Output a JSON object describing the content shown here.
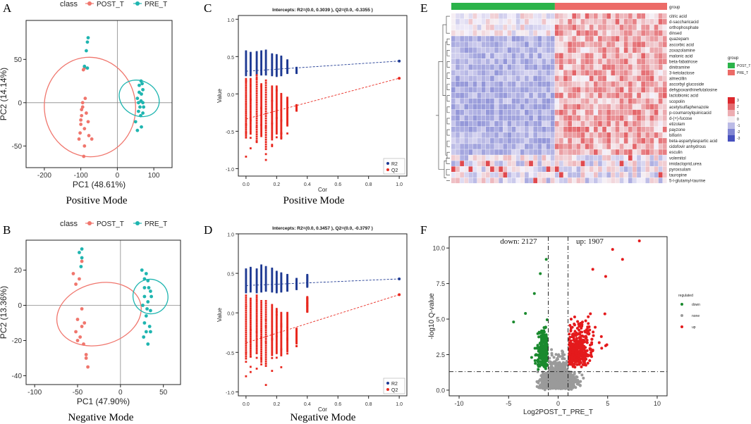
{
  "panels": {
    "A": {
      "letter": "A",
      "mode_label": "Positive Mode"
    },
    "B": {
      "letter": "B",
      "mode_label": "Negative Mode"
    },
    "C": {
      "letter": "C",
      "mode_label": "Positive Mode"
    },
    "D": {
      "letter": "D",
      "mode_label": "Negative Mode"
    },
    "E": {
      "letter": "E"
    },
    "F": {
      "letter": "F"
    }
  },
  "colors": {
    "post": "#f0766d",
    "pre": "#1fb5b0",
    "r2": "#1f3a93",
    "q2": "#e8281f",
    "down": "#1a8a2e",
    "none": "#9a9a9a",
    "up": "#e41a1c"
  },
  "chart_data": [
    {
      "id": "A",
      "type": "scatter",
      "legend_title": "class",
      "legend": [
        "POST_T",
        "PRE_T"
      ],
      "xlabel": "PC1 (48.61%)",
      "ylabel": "PC2 (14.14%)",
      "xlim": [
        -250,
        150
      ],
      "ylim": [
        -75,
        95
      ],
      "xticks": [
        -200,
        -100,
        0,
        100
      ],
      "yticks": [
        -50,
        0,
        50
      ],
      "ellipses": [
        {
          "series": "POST_T",
          "center": [
            -75,
            -5
          ],
          "rx": 250,
          "ry": 115,
          "angle": -5
        },
        {
          "series": "PRE_T",
          "center": [
            60,
            5
          ],
          "rx": 95,
          "ry": 48,
          "angle": -60
        }
      ],
      "series": [
        {
          "name": "POST_T",
          "points": [
            [
              -95,
              -5
            ],
            [
              -98,
              -15
            ],
            [
              -100,
              -25
            ],
            [
              -102,
              -35
            ],
            [
              -105,
              -42
            ],
            [
              -90,
              -50
            ],
            [
              -92,
              -62
            ],
            [
              -85,
              -12
            ],
            [
              -80,
              -22
            ],
            [
              -95,
              0
            ],
            [
              -100,
              -20
            ],
            [
              -90,
              -30
            ],
            [
              -78,
              -38
            ],
            [
              -70,
              -42
            ],
            [
              -88,
              5
            ],
            [
              -93,
              38
            ],
            [
              -90,
              40
            ],
            [
              -98,
              -8
            ]
          ]
        },
        {
          "name": "PRE_T",
          "points": [
            [
              -80,
              75
            ],
            [
              -82,
              70
            ],
            [
              -85,
              60
            ],
            [
              -90,
              42
            ],
            [
              -82,
              40
            ],
            [
              60,
              20
            ],
            [
              65,
              25
            ],
            [
              70,
              15
            ],
            [
              55,
              5
            ],
            [
              58,
              0
            ],
            [
              62,
              -5
            ],
            [
              66,
              10
            ],
            [
              70,
              -12
            ],
            [
              50,
              -22
            ],
            [
              55,
              -32
            ],
            [
              68,
              22
            ],
            [
              60,
              12
            ],
            [
              65,
              2
            ],
            [
              72,
              -5
            ],
            [
              58,
              -10
            ],
            [
              64,
              -15
            ],
            [
              70,
              0
            ],
            [
              66,
              -28
            ]
          ]
        }
      ]
    },
    {
      "id": "B",
      "type": "scatter",
      "legend_title": "class",
      "legend": [
        "POST_T",
        "PRE_T"
      ],
      "xlabel": "PC1 (47.90%)",
      "ylabel": "PC2 (13.36%)",
      "xlim": [
        -110,
        70
      ],
      "ylim": [
        -45,
        37
      ],
      "xticks": [
        -100,
        -50,
        0,
        50
      ],
      "yticks": [
        -40,
        -20,
        0,
        20
      ],
      "ellipses": [
        {
          "series": "POST_T",
          "center": [
            -25,
            -5
          ],
          "rx": 100,
          "ry": 35,
          "angle": -15
        },
        {
          "series": "PRE_T",
          "center": [
            35,
            5
          ],
          "rx": 40,
          "ry": 20,
          "angle": -55
        }
      ],
      "series": [
        {
          "name": "POST_T",
          "points": [
            [
              -48,
              15
            ],
            [
              -52,
              12
            ],
            [
              -50,
              -8
            ],
            [
              -45,
              -12
            ],
            [
              -47,
              -18
            ],
            [
              -43,
              -22
            ],
            [
              -40,
              -28
            ],
            [
              -38,
              -35
            ],
            [
              -55,
              18
            ],
            [
              -45,
              -2
            ],
            [
              -42,
              -10
            ],
            [
              -50,
              -20
            ],
            [
              -45,
              25
            ],
            [
              -52,
              -15
            ],
            [
              -40,
              -30
            ]
          ]
        },
        {
          "name": "PRE_T",
          "points": [
            [
              -45,
              32
            ],
            [
              -48,
              30
            ],
            [
              -45,
              27
            ],
            [
              -46,
              22
            ],
            [
              25,
              20
            ],
            [
              30,
              18
            ],
            [
              32,
              14
            ],
            [
              28,
              10
            ],
            [
              35,
              8
            ],
            [
              28,
              5
            ],
            [
              32,
              2
            ],
            [
              26,
              0
            ],
            [
              35,
              -3
            ],
            [
              30,
              -6
            ],
            [
              28,
              -10
            ],
            [
              34,
              -12
            ],
            [
              30,
              -15
            ],
            [
              27,
              -18
            ],
            [
              32,
              -22
            ],
            [
              35,
              -15
            ],
            [
              28,
              15
            ],
            [
              33,
              10
            ],
            [
              36,
              5
            ],
            [
              31,
              -2
            ]
          ]
        }
      ]
    },
    {
      "id": "C",
      "type": "scatter",
      "title": "Intercepts: R2=(0.0, 0.3039 ), Q2=(0.0, -0.3355 )",
      "xlabel": "Cor",
      "ylabel": "Value",
      "xlim": [
        -0.05,
        1.05
      ],
      "ylim": [
        -1.1,
        1.05
      ],
      "xticks": [
        0.0,
        0.2,
        0.4,
        0.6,
        0.8,
        1.0
      ],
      "yticks": [
        -1.0,
        -0.5,
        0.0,
        0.5,
        1.0
      ],
      "legend": [
        "R2",
        "Q2"
      ],
      "lines": [
        {
          "series": "R2",
          "from": [
            0,
            0.3039
          ],
          "to": [
            1.0,
            0.44
          ]
        },
        {
          "series": "Q2",
          "from": [
            0,
            -0.3355
          ],
          "to": [
            1.0,
            0.21
          ]
        }
      ],
      "x_columns": [
        0.0,
        0.03,
        0.07,
        0.1,
        0.13,
        0.17,
        0.2,
        0.23,
        0.27,
        0.33
      ],
      "r2_ranges": [
        [
          0.25,
          0.57
        ],
        [
          0.25,
          0.55
        ],
        [
          0.25,
          0.56
        ],
        [
          0.26,
          0.57
        ],
        [
          0.26,
          0.58
        ],
        [
          0.25,
          0.53
        ],
        [
          0.24,
          0.52
        ],
        [
          0.25,
          0.5
        ],
        [
          0.28,
          0.45
        ],
        [
          0.28,
          0.35
        ]
      ],
      "q2_ranges": [
        [
          -0.85,
          0.2
        ],
        [
          -0.78,
          0.2
        ],
        [
          -0.93,
          0.25
        ],
        [
          -0.8,
          0.13
        ],
        [
          -1.05,
          0.18
        ],
        [
          -0.85,
          0.1
        ],
        [
          -0.72,
          0.1
        ],
        [
          -0.8,
          0.0
        ],
        [
          -0.55,
          -0.05
        ],
        [
          -0.25,
          -0.15
        ]
      ],
      "endpoint": {
        "x": 1.0,
        "R2": 0.44,
        "Q2": 0.21
      }
    },
    {
      "id": "D",
      "type": "scatter",
      "title": "Intercepts: R2=(0.0, 0.3457 ), Q2=(0.0, -0.3797 )",
      "xlabel": "Cor",
      "ylabel": "Value",
      "xlim": [
        -0.05,
        1.05
      ],
      "ylim": [
        -1.05,
        1.0
      ],
      "xticks": [
        0.0,
        0.2,
        0.4,
        0.6,
        0.8,
        1.0
      ],
      "yticks": [
        -1.0,
        -0.5,
        0.0,
        0.5,
        1.0
      ],
      "legend": [
        "R2",
        "Q2"
      ],
      "lines": [
        {
          "series": "R2",
          "from": [
            0,
            0.3457
          ],
          "to": [
            1.0,
            0.43
          ]
        },
        {
          "series": "Q2",
          "from": [
            0,
            -0.3797
          ],
          "to": [
            1.0,
            0.23
          ]
        }
      ],
      "x_columns": [
        0.0,
        0.03,
        0.07,
        0.1,
        0.13,
        0.17,
        0.2,
        0.23,
        0.27,
        0.33,
        0.4
      ],
      "r2_ranges": [
        [
          0.26,
          0.55
        ],
        [
          0.27,
          0.57
        ],
        [
          0.26,
          0.55
        ],
        [
          0.27,
          0.6
        ],
        [
          0.28,
          0.58
        ],
        [
          0.27,
          0.56
        ],
        [
          0.26,
          0.52
        ],
        [
          0.27,
          0.5
        ],
        [
          0.28,
          0.48
        ],
        [
          0.3,
          0.43
        ],
        [
          0.33,
          0.48
        ]
      ],
      "q2_ranges": [
        [
          -0.85,
          0.22
        ],
        [
          -0.8,
          0.18
        ],
        [
          -0.75,
          0.22
        ],
        [
          -0.88,
          0.15
        ],
        [
          -0.95,
          0.15
        ],
        [
          -0.75,
          0.1
        ],
        [
          -0.7,
          0.05
        ],
        [
          -0.72,
          0.0
        ],
        [
          -0.65,
          0.0
        ],
        [
          -0.45,
          -0.2
        ],
        [
          -0.05,
          0.2
        ]
      ],
      "endpoint": {
        "x": 1.0,
        "R2": 0.43,
        "Q2": 0.23
      }
    },
    {
      "id": "E",
      "type": "heatmap",
      "group_title": "group",
      "groups": [
        "POST_T",
        "PRE_T"
      ],
      "scale": [
        3,
        2,
        1,
        0,
        -1,
        -2,
        -3
      ],
      "rows": [
        "citric acid",
        "d-saccharicacid",
        "orthophosphate",
        "dinsed",
        "quazepam",
        "ascorbic acid",
        "zoxazolamine",
        "malonic acid",
        "beta-fabatriose",
        "dinitramine",
        "3-ketolactose",
        "almecillin",
        "ascorbyl glucoside",
        "dehypoxanthinefutalosine",
        "lactobionic acid",
        "scopolin",
        "acetylsulfaphenazole",
        "p-coumaroylquinicacid",
        "d-(+)-fucose",
        "etizolam",
        "payzone",
        "bifiorin",
        "beta-aspartylaspartic acid",
        "cidofovir anhydrous",
        "esculin",
        "volemitol",
        "imidacloprid,urea",
        "pyroxsulam",
        "tauropine",
        "5-l-glutamyl-taurine"
      ]
    },
    {
      "id": "F",
      "type": "scatter",
      "annotations": [
        "down: 2127",
        "up: 1907"
      ],
      "xlabel": "Log2POST_T_PRE_T",
      "ylabel": "-log10 Q-value",
      "xlim": [
        -11,
        11
      ],
      "ylim": [
        -0.4,
        10.8
      ],
      "xticks": [
        -10,
        -5,
        0,
        5,
        10
      ],
      "yticks": [
        0.0,
        2.5,
        5.0,
        7.5,
        10.0
      ],
      "thresholds": {
        "x": [
          -1,
          1
        ],
        "y": 1.3
      },
      "legend_title": "regulated",
      "legend": [
        "down",
        "none",
        "up"
      ],
      "extremes": {
        "up": [
          [
            8.2,
            10.5
          ],
          [
            5.5,
            9.9
          ],
          [
            6.5,
            9.2
          ],
          [
            3.5,
            8.5
          ],
          [
            4.8,
            8.0
          ]
        ],
        "down": [
          [
            -1.2,
            9.2
          ],
          [
            -1.8,
            8.2
          ],
          [
            -2.4,
            6.8
          ],
          [
            -4.5,
            4.8
          ],
          [
            -3.3,
            5.4
          ]
        ]
      }
    }
  ]
}
